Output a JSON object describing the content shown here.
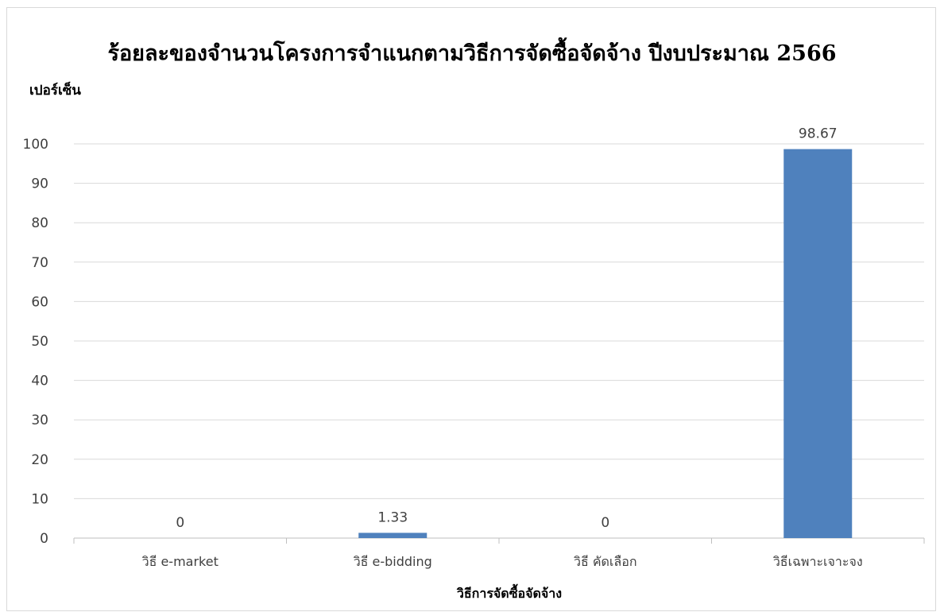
{
  "chart_data": {
    "type": "bar",
    "title": "ร้อยละของจำนวนโครงการจำแนกตามวิธีการจัดซื้อจัดจ้าง ปีงบประมาณ 2566",
    "ylabel": "เปอร์เซ็น",
    "xlabel": "วิธีการจัดซื้อจัดจ้าง",
    "categories": [
      "วิธี e-market",
      "วิธี e-bidding",
      "วิธี คัดเลือก",
      "วิธีเฉพาะเจาะจง"
    ],
    "values": [
      0,
      1.33,
      0,
      98.67
    ],
    "data_labels": [
      "0",
      "1.33",
      "0",
      "98.67"
    ],
    "ylim": [
      0,
      100
    ],
    "yticks": [
      "0",
      "10",
      "20",
      "30",
      "40",
      "50",
      "60",
      "70",
      "80",
      "90",
      "100"
    ],
    "grid": true,
    "legend": "none",
    "bar_color": "#4f81bd"
  }
}
